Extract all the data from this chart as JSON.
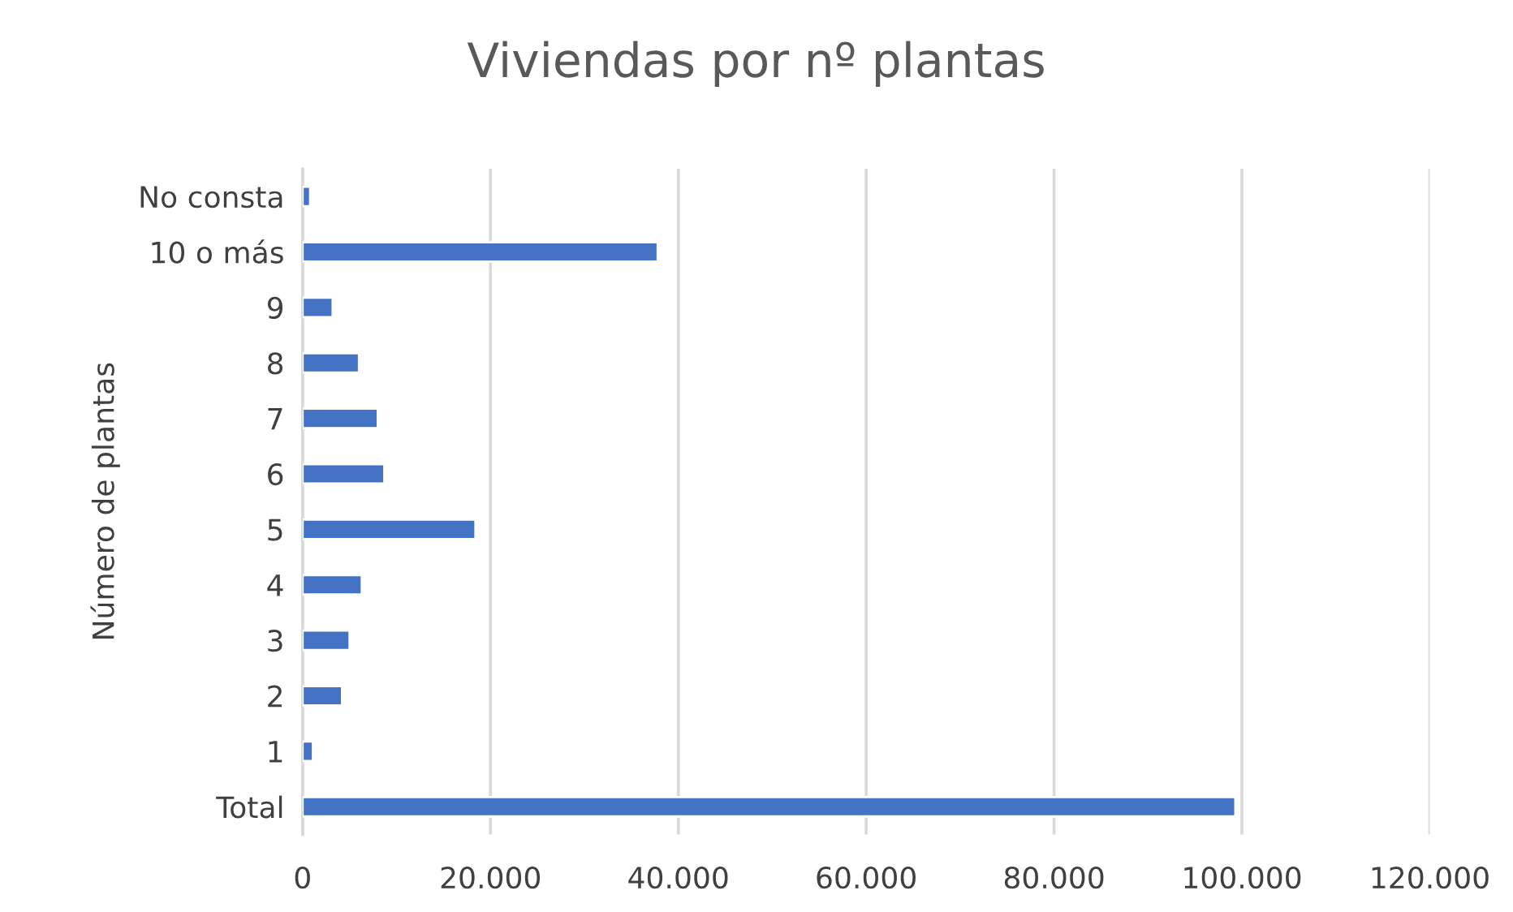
{
  "chart_data": {
    "type": "bar",
    "orientation": "horizontal",
    "title": "Viviendas por nº plantas",
    "ylabel": "Número de plantas",
    "categories": [
      "No consta",
      "10 o más",
      "9",
      "8",
      "7",
      "6",
      "5",
      "4",
      "3",
      "2",
      "1",
      "Total"
    ],
    "values": [
      800,
      37800,
      3200,
      6000,
      8000,
      8700,
      18400,
      6300,
      5000,
      4200,
      1100,
      99300
    ],
    "color": "#4472c4",
    "xlim": [
      0,
      120000
    ],
    "xticks": [
      {
        "value": 0,
        "label": "0"
      },
      {
        "value": 20000,
        "label": "20.000"
      },
      {
        "value": 40000,
        "label": "40.000"
      },
      {
        "value": 60000,
        "label": "60.000"
      },
      {
        "value": 80000,
        "label": "80.000"
      },
      {
        "value": 100000,
        "label": "100.000"
      },
      {
        "value": 120000,
        "label": "120.000"
      }
    ],
    "grid": "x"
  }
}
